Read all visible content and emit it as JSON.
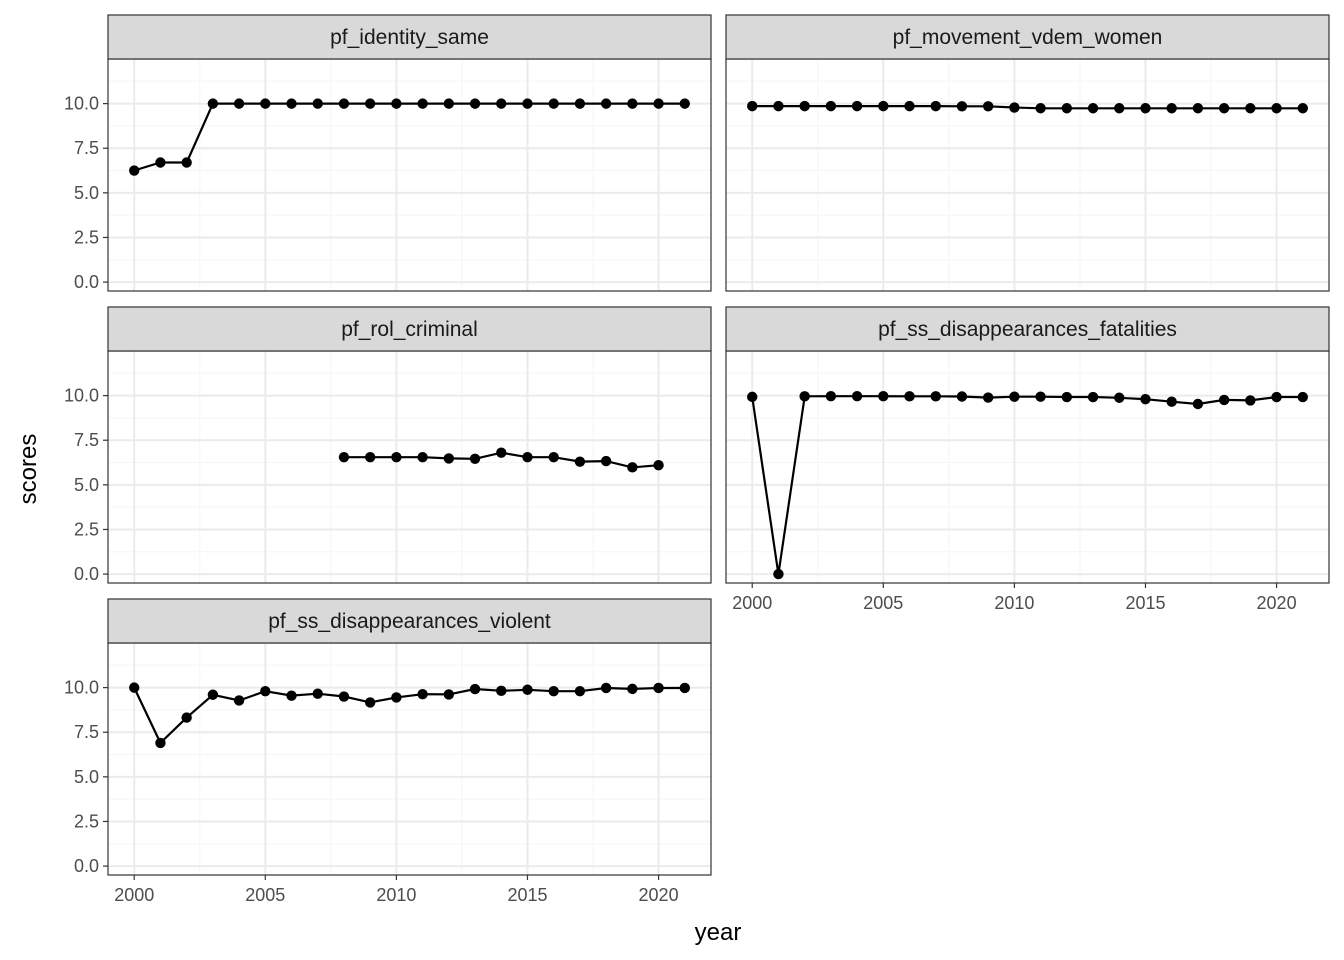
{
  "chart_data": {
    "type": "line",
    "xlabel": "year",
    "ylabel": "scores",
    "xlim": [
      1999.0,
      2022.0
    ],
    "ylim": [
      -0.5,
      12.5
    ],
    "x_ticks": [
      2000,
      2005,
      2010,
      2015,
      2020
    ],
    "y_ticks": [
      0.0,
      2.5,
      5.0,
      7.5,
      10.0
    ],
    "y_tick_labels": [
      "0.0",
      "2.5",
      "5.0",
      "7.5",
      "10.0"
    ],
    "x_tick_labels": [
      "2000",
      "2005",
      "2010",
      "2015",
      "2020"
    ],
    "grid": true,
    "theme": "bw",
    "colors": {
      "line": "#000000",
      "strip": "#d9d9d9",
      "grid_major": "#ebebeb",
      "grid_minor": "#f5f5f5",
      "border": "#333333"
    },
    "panels": [
      {
        "name": "pf_identity_same",
        "x": [
          2000,
          2001,
          2002,
          2003,
          2004,
          2005,
          2006,
          2007,
          2008,
          2009,
          2010,
          2011,
          2012,
          2013,
          2014,
          2015,
          2016,
          2017,
          2018,
          2019,
          2020,
          2021
        ],
        "y": [
          6.25,
          6.7,
          6.7,
          10,
          10,
          10,
          10,
          10,
          10,
          10,
          10,
          10,
          10,
          10,
          10,
          10,
          10,
          10,
          10,
          10,
          10,
          10
        ]
      },
      {
        "name": "pf_movement_vdem_women",
        "x": [
          2000,
          2001,
          2002,
          2003,
          2004,
          2005,
          2006,
          2007,
          2008,
          2009,
          2010,
          2011,
          2012,
          2013,
          2014,
          2015,
          2016,
          2017,
          2018,
          2019,
          2020,
          2021
        ],
        "y": [
          9.86,
          9.86,
          9.86,
          9.86,
          9.86,
          9.86,
          9.86,
          9.86,
          9.85,
          9.85,
          9.78,
          9.74,
          9.74,
          9.74,
          9.74,
          9.74,
          9.74,
          9.74,
          9.74,
          9.74,
          9.74,
          9.74
        ]
      },
      {
        "name": "pf_rol_criminal",
        "x": [
          2008,
          2009,
          2010,
          2011,
          2012,
          2013,
          2014,
          2015,
          2016,
          2017,
          2018,
          2019,
          2020
        ],
        "y": [
          6.55,
          6.55,
          6.55,
          6.55,
          6.48,
          6.46,
          6.8,
          6.55,
          6.55,
          6.3,
          6.33,
          5.98,
          6.1
        ]
      },
      {
        "name": "pf_ss_disappearances_fatalities",
        "x": [
          2000,
          2001,
          2002,
          2003,
          2004,
          2005,
          2006,
          2007,
          2008,
          2009,
          2010,
          2011,
          2012,
          2013,
          2014,
          2015,
          2016,
          2017,
          2018,
          2019,
          2020,
          2021
        ],
        "y": [
          9.93,
          0.0,
          9.96,
          9.97,
          9.97,
          9.97,
          9.96,
          9.96,
          9.95,
          9.89,
          9.94,
          9.94,
          9.92,
          9.92,
          9.88,
          9.8,
          9.66,
          9.53,
          9.76,
          9.73,
          9.92,
          9.92
        ]
      },
      {
        "name": "pf_ss_disappearances_violent",
        "x": [
          2000,
          2001,
          2002,
          2003,
          2004,
          2005,
          2006,
          2007,
          2008,
          2009,
          2010,
          2011,
          2012,
          2013,
          2014,
          2015,
          2016,
          2017,
          2018,
          2019,
          2020,
          2021
        ],
        "y": [
          10.0,
          6.9,
          8.32,
          9.6,
          9.28,
          9.8,
          9.55,
          9.66,
          9.5,
          9.17,
          9.45,
          9.63,
          9.62,
          9.92,
          9.82,
          9.88,
          9.8,
          9.8,
          9.98,
          9.93,
          9.98,
          9.98
        ]
      }
    ]
  }
}
